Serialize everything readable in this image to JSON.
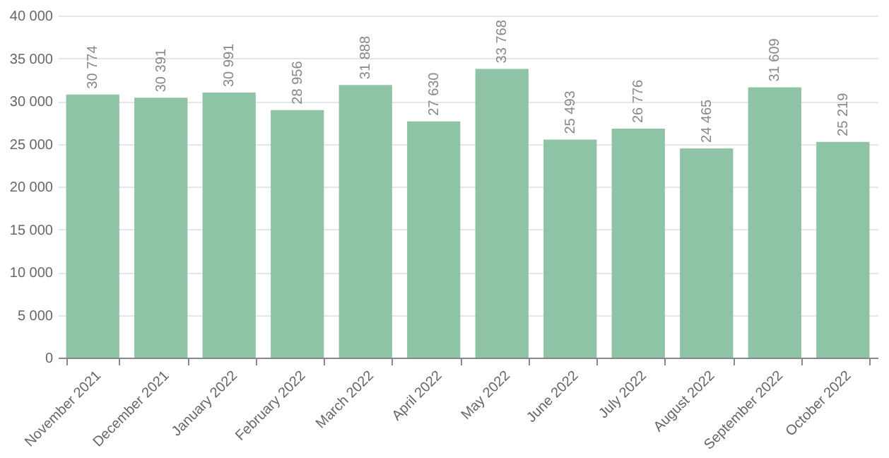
{
  "chart_data": {
    "type": "bar",
    "categories": [
      "November 2021",
      "December 2021",
      "January 2022",
      "February 2022",
      "March 2022",
      "April 2022",
      "May 2022",
      "June 2022",
      "July 2022",
      "August 2022",
      "September 2022",
      "October 2022"
    ],
    "values": [
      30774,
      30391,
      30991,
      28956,
      31888,
      27630,
      33768,
      25493,
      26776,
      24465,
      31609,
      25219
    ],
    "value_labels": [
      "30 774",
      "30 391",
      "30 991",
      "28 956",
      "31 888",
      "27 630",
      "33 768",
      "25 493",
      "26 776",
      "24 465",
      "31 609",
      "25 219"
    ],
    "color": "#8fc3a5",
    "ylim": [
      0,
      40000
    ],
    "yticks": [
      {
        "value": 0,
        "label": "0"
      },
      {
        "value": 5000,
        "label": "5 000"
      },
      {
        "value": 10000,
        "label": "10 000"
      },
      {
        "value": 15000,
        "label": "15 000"
      },
      {
        "value": 20000,
        "label": "20 000"
      },
      {
        "value": 25000,
        "label": "25 000"
      },
      {
        "value": 30000,
        "label": "30 000"
      },
      {
        "value": 35000,
        "label": "35 000"
      },
      {
        "value": 40000,
        "label": "40 000"
      }
    ],
    "grid": "y"
  }
}
